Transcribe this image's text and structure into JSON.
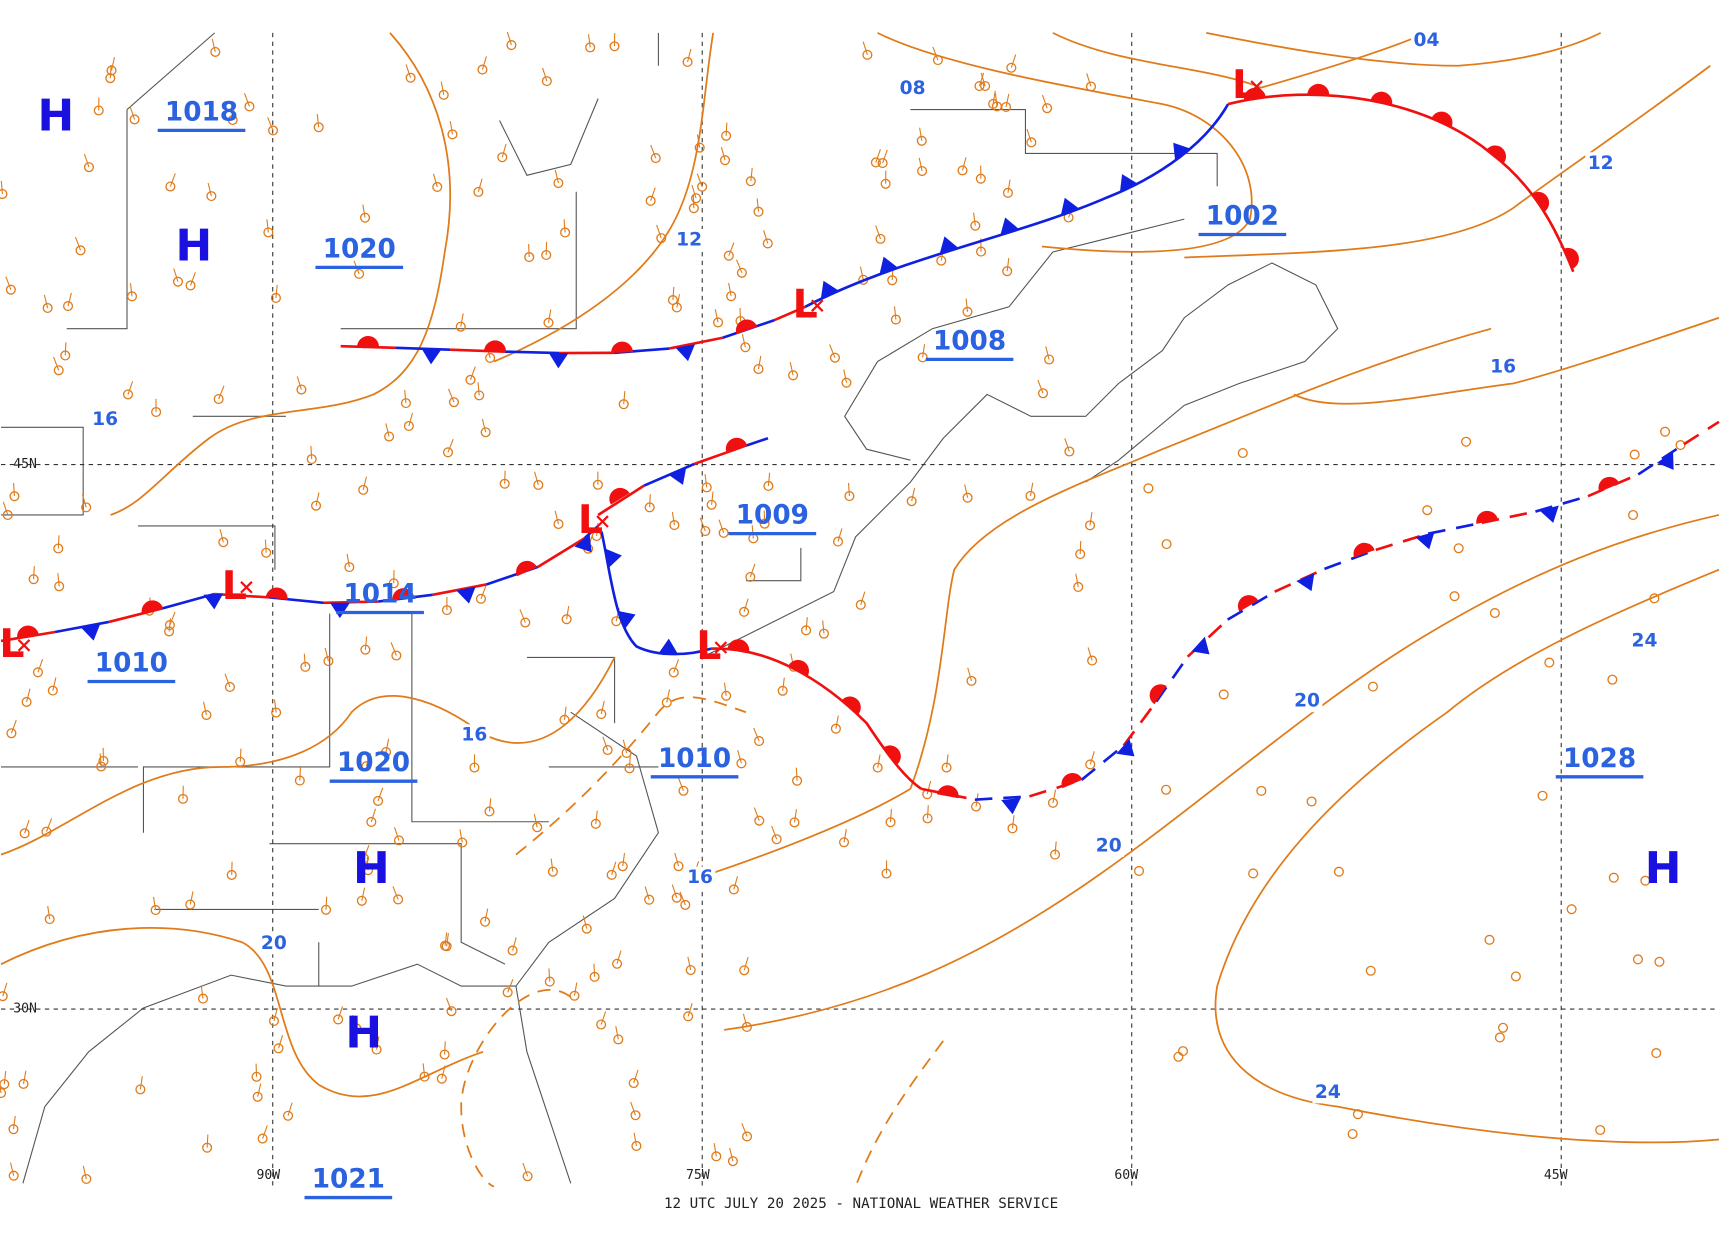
{
  "map": {
    "footer": "12 UTC JULY 20 2025 - NATIONAL WEATHER SERVICE",
    "grid_labels": [
      "45N",
      "30N",
      "90W",
      "75W",
      "60W",
      "45W"
    ],
    "highs": [
      "H",
      "H",
      "H",
      "H",
      "H"
    ],
    "lows": [
      "L",
      "L",
      "L",
      "L",
      "L",
      "L"
    ],
    "pressure_labels": [
      "1018",
      "1020",
      "1014",
      "1010",
      "1020",
      "1010",
      "1009",
      "1008",
      "1002",
      "1028",
      "1021"
    ],
    "isobar_labels": [
      "08",
      "04",
      "12",
      "12",
      "16",
      "16",
      "16",
      "16",
      "20",
      "20",
      "20",
      "24",
      "24"
    ]
  }
}
